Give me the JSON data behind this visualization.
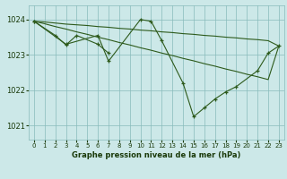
{
  "background_color": "#cce8e8",
  "grid_color": "#88bbbb",
  "line_color": "#2d5a1b",
  "title": "Graphe pression niveau de la mer (hPa)",
  "xlim": [
    -0.5,
    23.5
  ],
  "ylim": [
    1020.6,
    1024.4
  ],
  "yticks": [
    1021,
    1022,
    1023,
    1024
  ],
  "xticks": [
    0,
    1,
    2,
    3,
    4,
    5,
    6,
    7,
    8,
    9,
    10,
    11,
    12,
    13,
    14,
    15,
    16,
    17,
    18,
    19,
    20,
    21,
    22,
    23
  ],
  "line1_x": [
    0,
    1,
    2,
    3,
    4,
    5,
    6,
    7,
    8,
    9,
    10,
    11,
    12,
    13,
    14,
    15,
    16,
    17,
    18,
    19,
    20,
    21,
    22,
    23
  ],
  "line1_y": [
    1023.95,
    1023.93,
    1023.9,
    1023.87,
    1023.85,
    1023.83,
    1023.8,
    1023.78,
    1023.75,
    1023.73,
    1023.7,
    1023.68,
    1023.65,
    1023.63,
    1023.6,
    1023.58,
    1023.55,
    1023.53,
    1023.5,
    1023.48,
    1023.45,
    1023.43,
    1023.4,
    1023.25
  ],
  "line2_x": [
    0,
    1,
    2,
    3,
    4,
    5,
    6,
    7,
    8,
    9,
    10,
    11,
    12,
    13,
    14,
    15,
    16,
    17,
    18,
    19,
    20,
    21,
    22,
    23
  ],
  "line2_y": [
    1023.95,
    1023.88,
    1023.8,
    1023.73,
    1023.65,
    1023.58,
    1023.5,
    1023.43,
    1023.35,
    1023.28,
    1023.2,
    1023.13,
    1023.05,
    1022.98,
    1022.9,
    1022.83,
    1022.75,
    1022.68,
    1022.6,
    1022.53,
    1022.45,
    1022.38,
    1022.3,
    1023.25
  ],
  "seg1_x": [
    0,
    3,
    6,
    7,
    10,
    11,
    12,
    14,
    15,
    16,
    17,
    18,
    19,
    21,
    22,
    23
  ],
  "seg1_y": [
    1023.95,
    1023.3,
    1023.55,
    1022.82,
    1024.0,
    1023.95,
    1023.4,
    1022.2,
    1021.25,
    1021.5,
    1021.75,
    1021.95,
    1022.1,
    1022.55,
    1023.05,
    1023.25
  ],
  "seg2_x": [
    0,
    2,
    3,
    4,
    6,
    7
  ],
  "seg2_y": [
    1023.95,
    1023.55,
    1023.28,
    1023.55,
    1023.3,
    1023.05
  ]
}
